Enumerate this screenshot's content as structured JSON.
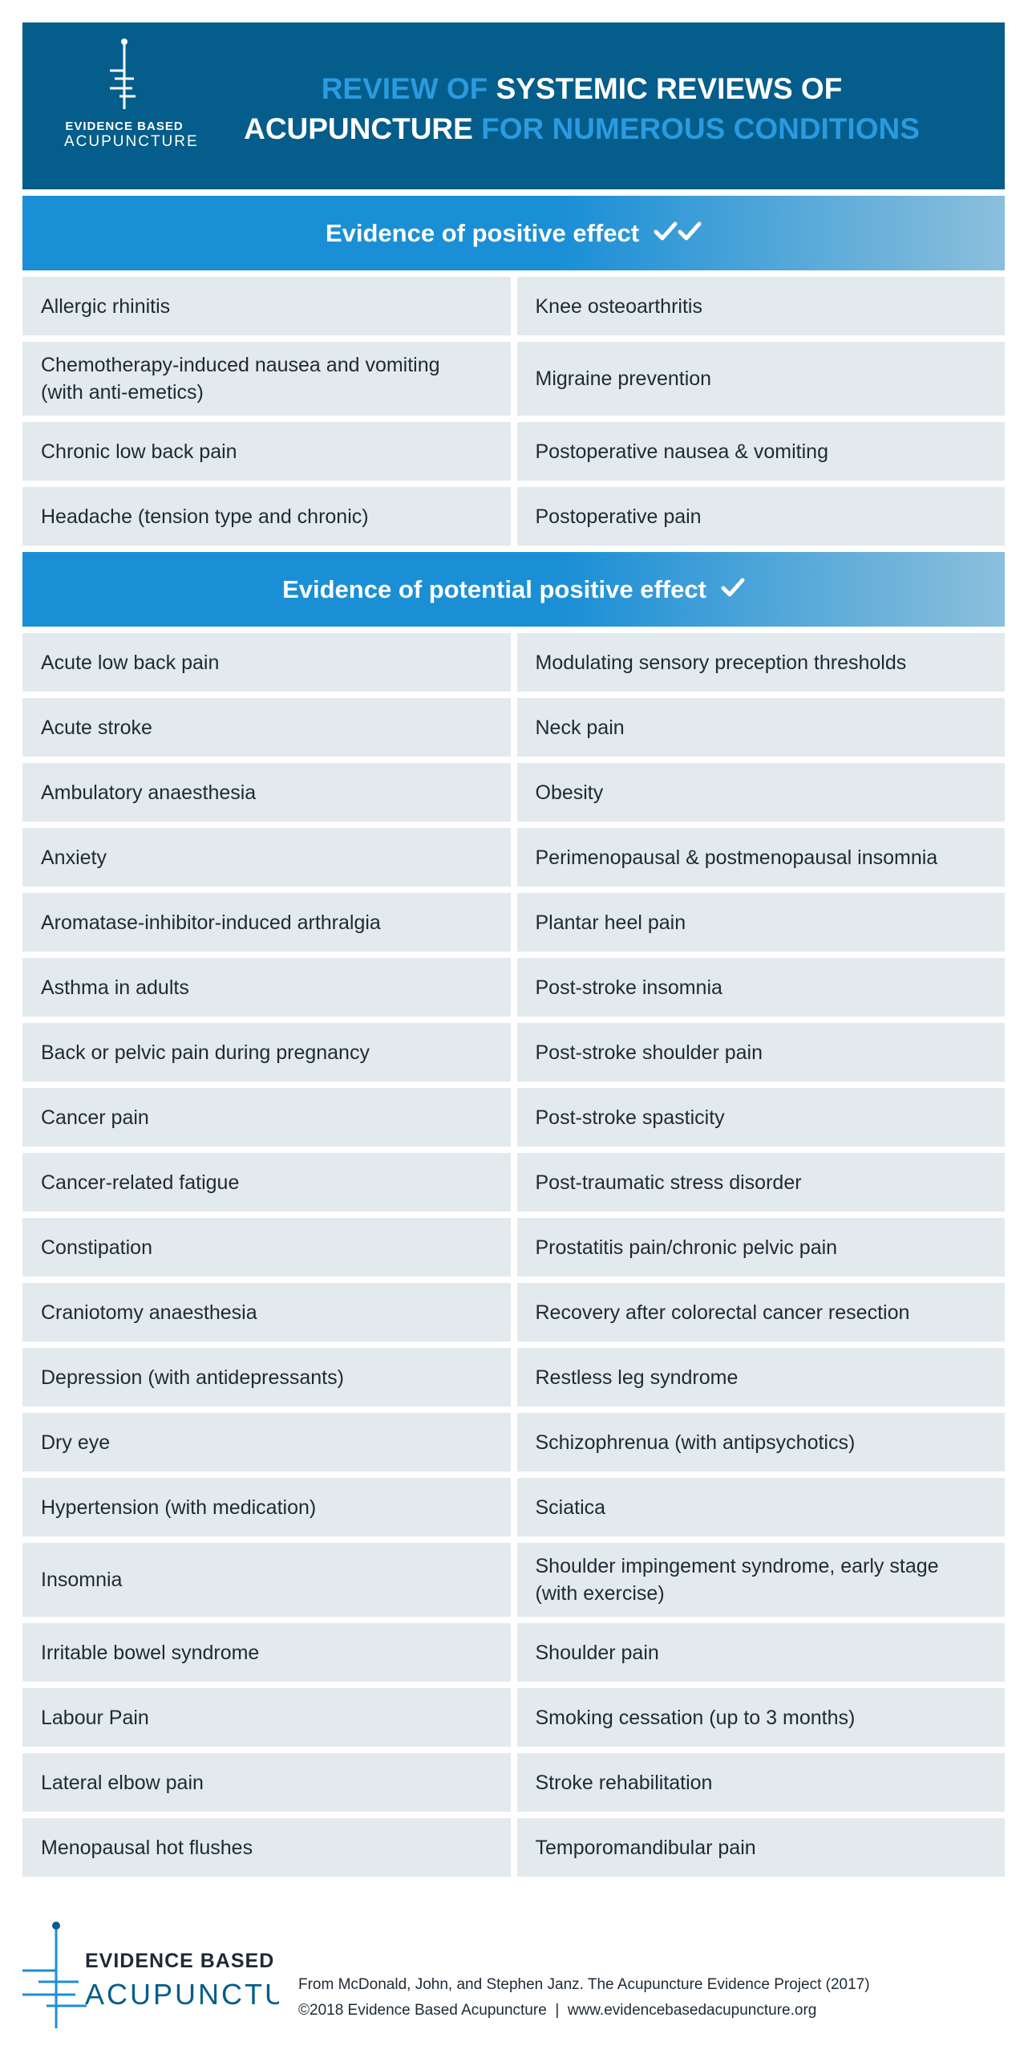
{
  "header": {
    "logo": {
      "line1": "EVIDENCE BASED",
      "line2": "ACUPUNCTURE"
    },
    "title": {
      "part1": "REVIEW OF",
      "part2": "SYSTEMIC REVIEWS OF",
      "part3": "ACUPUNCTURE",
      "part4": "FOR NUMEROUS CONDITIONS"
    }
  },
  "sections": [
    {
      "title": "Evidence of positive effect",
      "checks": 2,
      "rows": [
        [
          "Allergic rhinitis",
          "Knee osteoarthritis"
        ],
        [
          "Chemotherapy-induced nausea and vomiting (with anti-emetics)",
          "Migraine prevention"
        ],
        [
          "Chronic low back pain",
          "Postoperative nausea & vomiting"
        ],
        [
          "Headache (tension type and chronic)",
          "Postoperative pain"
        ]
      ]
    },
    {
      "title": "Evidence of potential positive effect",
      "checks": 1,
      "rows": [
        [
          "Acute low back pain",
          "Modulating sensory preception thresholds"
        ],
        [
          "Acute stroke",
          "Neck pain"
        ],
        [
          "Ambulatory anaesthesia",
          "Obesity"
        ],
        [
          "Anxiety",
          "Perimenopausal & postmenopausal insomnia"
        ],
        [
          "Aromatase-inhibitor-induced arthralgia",
          "Plantar heel pain"
        ],
        [
          "Asthma in adults",
          "Post-stroke insomnia"
        ],
        [
          "Back or pelvic pain during pregnancy",
          "Post-stroke shoulder pain"
        ],
        [
          "Cancer pain",
          "Post-stroke spasticity"
        ],
        [
          "Cancer-related fatigue",
          "Post-traumatic stress disorder"
        ],
        [
          "Constipation",
          "Prostatitis pain/chronic pelvic pain"
        ],
        [
          "Craniotomy anaesthesia",
          "Recovery after colorectal cancer resection"
        ],
        [
          "Depression (with antidepressants)",
          "Restless leg syndrome"
        ],
        [
          "Dry eye",
          "Schizophrenua (with antipsychotics)"
        ],
        [
          "Hypertension (with medication)",
          "Sciatica"
        ],
        [
          "Insomnia",
          "Shoulder impingement syndrome, early stage (with exercise)"
        ],
        [
          "Irritable bowel syndrome",
          "Shoulder pain"
        ],
        [
          "Labour Pain",
          "Smoking cessation (up to 3 months)"
        ],
        [
          "Lateral elbow pain",
          "Stroke rehabilitation"
        ],
        [
          "Menopausal hot flushes",
          "Temporomandibular pain"
        ]
      ]
    }
  ],
  "footer": {
    "logo": {
      "line1": "EVIDENCE BASED",
      "line2": "ACUPUNCTURE"
    },
    "citation": "From McDonald, John, and Stephen Janz. The Acupuncture Evidence Project (2017)",
    "copyright": "©2018 Evidence Based Acupuncture  |  www.evidencebasedacupuncture.org"
  }
}
